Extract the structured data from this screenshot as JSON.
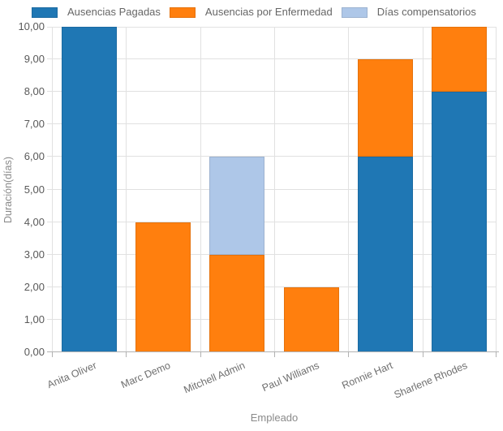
{
  "chart_data": {
    "type": "bar",
    "stacked": true,
    "categories": [
      "Anita Oliver",
      "Marc Demo",
      "Mitchell Admin",
      "Paul Williams",
      "Ronnie Hart",
      "Sharlene Rhodes"
    ],
    "series": [
      {
        "name": "Ausencias Pagadas",
        "color": "#1f77b4",
        "values": [
          10,
          0,
          0,
          0,
          6,
          8
        ]
      },
      {
        "name": "Ausencias por Enfermedad",
        "color": "#ff7f0e",
        "values": [
          0,
          4,
          3,
          2,
          3,
          2
        ]
      },
      {
        "name": "Días compensatorios",
        "color": "#aec7e8",
        "values": [
          0,
          0,
          3,
          0,
          0,
          0
        ]
      }
    ],
    "xlabel": "Empleado",
    "ylabel": "Duración(días)",
    "ylim": [
      0,
      10
    ],
    "ytick_step": 1,
    "ytick_labels": [
      "0,00",
      "1,00",
      "2,00",
      "3,00",
      "4,00",
      "5,00",
      "6,00",
      "7,00",
      "8,00",
      "9,00",
      "10,00"
    ],
    "legend_position": "top",
    "grid": true,
    "colors": {
      "bar_border": "rgba(0,0,0,0.1)",
      "grid": "#e1e1e1",
      "axis": "#b2b2b2",
      "tick_text": "#595959",
      "label_text": "#6e6e6e",
      "axis_title_text": "#8a8a8a",
      "legend_text": "#666666"
    }
  }
}
